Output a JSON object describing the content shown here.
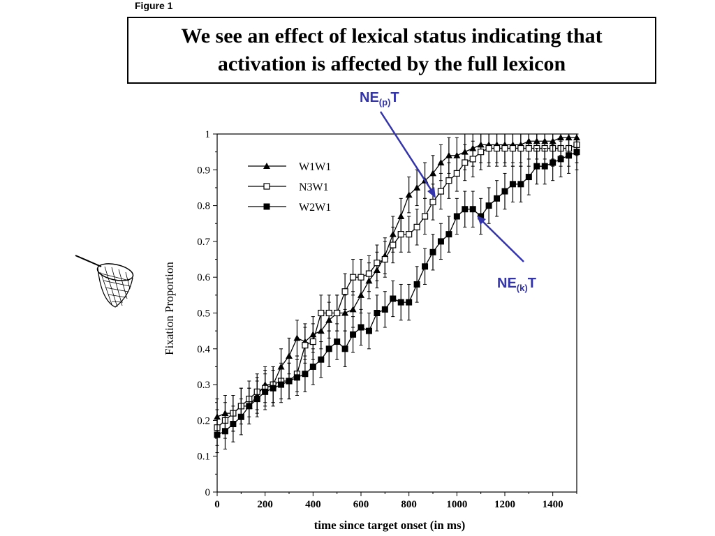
{
  "figure_label": "Figure 1",
  "title": "We see an effect of lexical status indicating that activation is affected by the full lexicon",
  "annotations": [
    {
      "main": "NE",
      "sub": "(p)",
      "tail": "T",
      "points_to_series": "N3W1"
    },
    {
      "main": "NE",
      "sub": "(k)",
      "tail": "T",
      "points_to_series": "W2W1"
    }
  ],
  "colors": {
    "annotation": "#3333aa",
    "ink": "#000000"
  },
  "decoration": {
    "icon": "butterfly-net-icon"
  },
  "chart_data": {
    "type": "line",
    "xlabel": "time since target onset (in ms)",
    "ylabel": "Fixation Proportion",
    "xlim": [
      0,
      1500
    ],
    "ylim": [
      0,
      1
    ],
    "xticks": [
      "0",
      "200",
      "400",
      "600",
      "800",
      "1000",
      "1200",
      "1400"
    ],
    "yticks": [
      "0",
      "0.1",
      "0.2",
      "0.3",
      "0.4",
      "0.5",
      "0.6",
      "0.7",
      "0.8",
      "0.9",
      "1"
    ],
    "grid": false,
    "legend": "top-left",
    "error_bars": true,
    "x_step": 33.3,
    "series": [
      {
        "name": "W1W1",
        "marker": "filled-triangle",
        "error_approx": 0.05,
        "values": [
          0.21,
          0.22,
          0.22,
          0.24,
          0.24,
          0.27,
          0.3,
          0.3,
          0.35,
          0.38,
          0.43,
          0.42,
          0.44,
          0.45,
          0.48,
          0.5,
          0.5,
          0.51,
          0.55,
          0.59,
          0.62,
          0.66,
          0.72,
          0.77,
          0.83,
          0.85,
          0.87,
          0.89,
          0.92,
          0.94,
          0.94,
          0.95,
          0.96,
          0.97,
          0.97,
          0.97,
          0.97,
          0.97,
          0.97,
          0.98,
          0.98,
          0.98,
          0.98,
          0.99,
          0.99,
          0.99
        ]
      },
      {
        "name": "N3W1",
        "marker": "open-square",
        "error_approx": 0.05,
        "values": [
          0.18,
          0.2,
          0.22,
          0.24,
          0.26,
          0.28,
          0.29,
          0.3,
          0.31,
          0.31,
          0.33,
          0.41,
          0.42,
          0.5,
          0.5,
          0.5,
          0.56,
          0.6,
          0.6,
          0.61,
          0.64,
          0.65,
          0.69,
          0.72,
          0.72,
          0.74,
          0.77,
          0.81,
          0.84,
          0.87,
          0.89,
          0.92,
          0.93,
          0.95,
          0.96,
          0.96,
          0.96,
          0.96,
          0.96,
          0.96,
          0.96,
          0.96,
          0.96,
          0.96,
          0.96,
          0.97
        ]
      },
      {
        "name": "W2W1",
        "marker": "filled-square",
        "error_approx": 0.05,
        "values": [
          0.16,
          0.17,
          0.19,
          0.21,
          0.24,
          0.26,
          0.28,
          0.29,
          0.3,
          0.31,
          0.32,
          0.33,
          0.35,
          0.37,
          0.4,
          0.42,
          0.4,
          0.44,
          0.46,
          0.45,
          0.5,
          0.51,
          0.54,
          0.53,
          0.53,
          0.58,
          0.63,
          0.67,
          0.7,
          0.72,
          0.77,
          0.79,
          0.79,
          0.77,
          0.8,
          0.82,
          0.84,
          0.86,
          0.86,
          0.88,
          0.91,
          0.91,
          0.92,
          0.93,
          0.94,
          0.95
        ]
      }
    ]
  }
}
